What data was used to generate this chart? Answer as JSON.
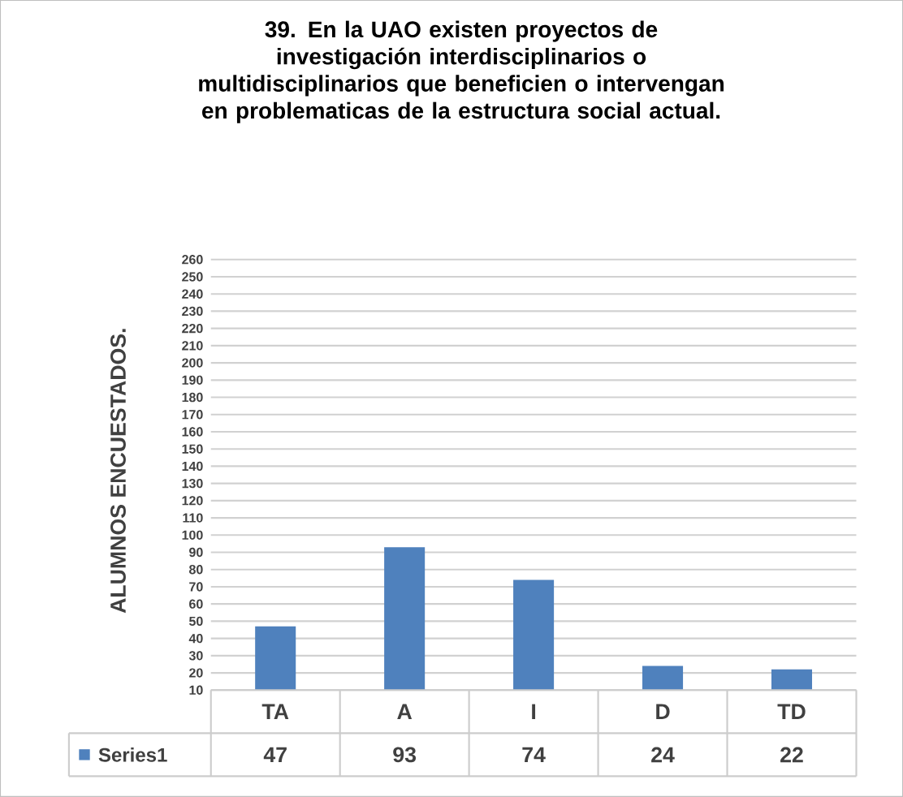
{
  "chart_data": {
    "type": "bar",
    "title": "39. En la UAO existen proyectos de investigación interdisciplinarios o multidisciplinarios que beneficien o intervengan en problematicas de la estructura social actual.",
    "ylabel": "ALUMNOS ENCUESTADOS.",
    "categories": [
      "TA",
      "A",
      "I",
      "D",
      "TD"
    ],
    "series": [
      {
        "name": "Series1",
        "color": "#4f81bd",
        "values": [
          47,
          93,
          74,
          24,
          22
        ]
      }
    ],
    "ylim": [
      10,
      260
    ],
    "yticks": [
      10,
      20,
      30,
      40,
      50,
      60,
      70,
      80,
      90,
      100,
      110,
      120,
      130,
      140,
      150,
      160,
      170,
      180,
      190,
      200,
      210,
      220,
      230,
      240,
      250,
      260
    ],
    "grid": "y",
    "data_labels": true
  }
}
